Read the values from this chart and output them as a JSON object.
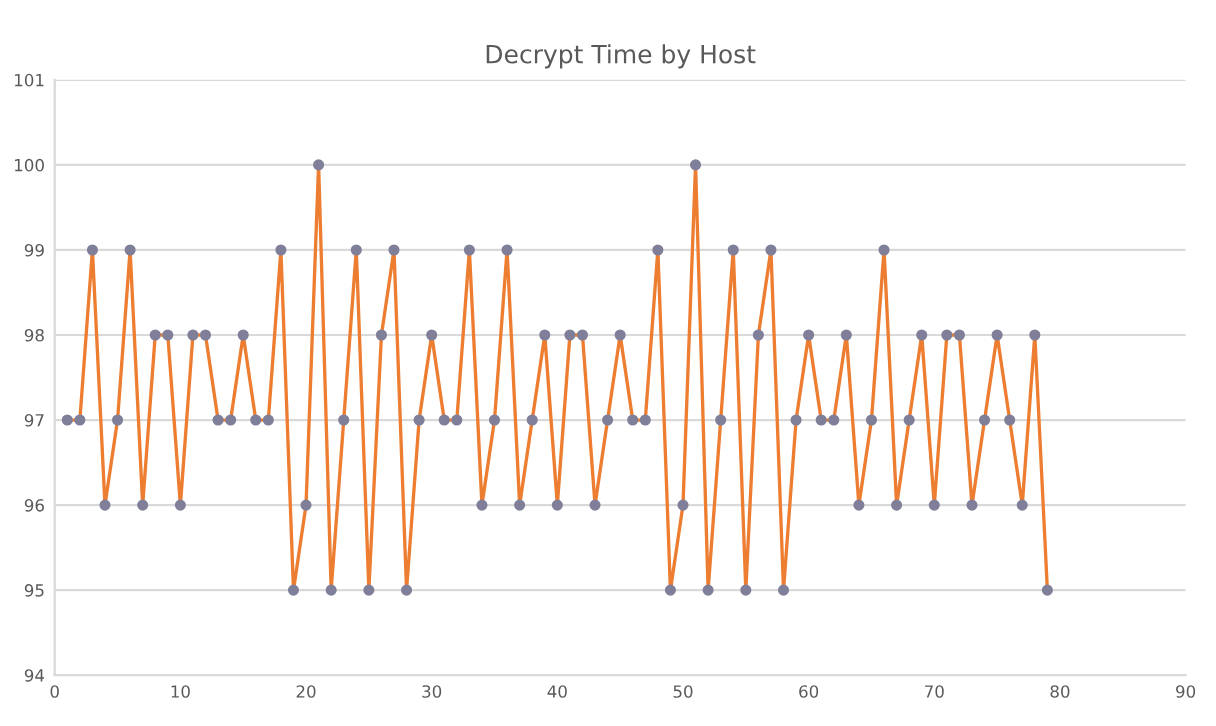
{
  "chart_data": {
    "type": "line",
    "title": "Decrypt Time by Host",
    "x": [
      1,
      2,
      3,
      4,
      5,
      6,
      7,
      8,
      9,
      10,
      11,
      12,
      13,
      14,
      15,
      16,
      17,
      18,
      19,
      20,
      21,
      22,
      23,
      24,
      25,
      26,
      27,
      28,
      29,
      30,
      31,
      32,
      33,
      34,
      35,
      36,
      37,
      38,
      39,
      40,
      41,
      42,
      43,
      44,
      45,
      46,
      47,
      48,
      49,
      50,
      51,
      52,
      53,
      54,
      55,
      56,
      57,
      58,
      59,
      60,
      61,
      62,
      63,
      64,
      65,
      66,
      67,
      68,
      69,
      70,
      71,
      72,
      73,
      74,
      75,
      76,
      77,
      78,
      79
    ],
    "series": [
      {
        "color": "#ed7d31",
        "values": [
          97,
          97,
          99,
          96,
          97,
          99,
          96,
          98,
          98,
          96,
          98,
          98,
          97,
          97,
          98,
          97,
          97,
          99,
          95,
          96,
          100,
          95,
          97,
          99,
          95,
          98,
          99,
          95,
          97,
          98,
          97,
          97,
          99,
          96,
          97,
          99,
          96,
          97,
          98,
          96,
          98,
          98,
          96,
          97,
          98,
          97,
          97,
          99,
          95,
          96,
          100,
          95,
          97,
          99,
          95,
          98,
          99,
          95,
          97,
          98,
          97,
          97,
          98,
          96,
          97,
          99,
          96,
          97,
          98,
          96,
          98,
          98,
          96,
          97,
          98,
          97,
          96,
          98,
          95
        ]
      }
    ],
    "xlim": [
      0,
      90
    ],
    "xticks": [
      0,
      10,
      20,
      30,
      40,
      50,
      60,
      70,
      80,
      90
    ],
    "ylim": [
      94,
      101
    ],
    "yticks": [
      94,
      95,
      96,
      97,
      98,
      99,
      100,
      101
    ],
    "grid": "y",
    "marker": "circle",
    "line_style": "solid",
    "legend": false
  }
}
